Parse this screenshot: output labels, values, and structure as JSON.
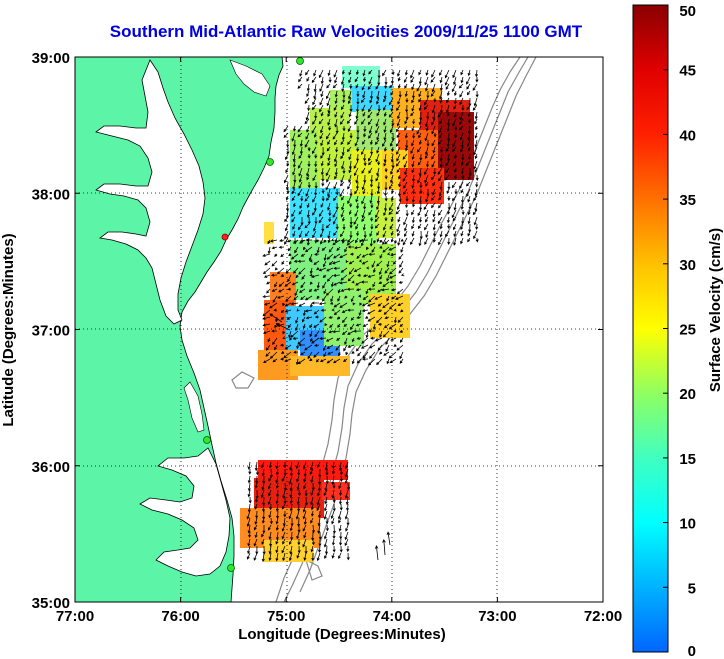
{
  "title": "Southern Mid-Atlantic Raw Velocities 2009/11/25 1100 GMT",
  "x_axis": {
    "label": "Longitude (Degrees:Minutes)",
    "ticks": [
      "77:00",
      "76:00",
      "75:00",
      "74:00",
      "73:00",
      "72:00"
    ],
    "range": [
      -77,
      -72
    ]
  },
  "y_axis": {
    "label": "Latitude (Degrees:Minutes)",
    "ticks": [
      "39:00",
      "38:00",
      "37:00",
      "36:00",
      "35:00"
    ],
    "range": [
      35,
      39
    ]
  },
  "colorbar": {
    "label": "Surface Velocity (cm/s)",
    "ticks": [
      "50",
      "45",
      "40",
      "35",
      "30",
      "25",
      "20",
      "15",
      "10",
      "5",
      "0"
    ],
    "range": [
      0,
      50
    ]
  },
  "grid": "dotted",
  "colors": {
    "land": "#5cf5a8",
    "coast": "#000000",
    "title": "#0000e0",
    "station_green": "#2ee82e",
    "station_red": "#ff2020",
    "bathymetry": "#888888"
  }
}
